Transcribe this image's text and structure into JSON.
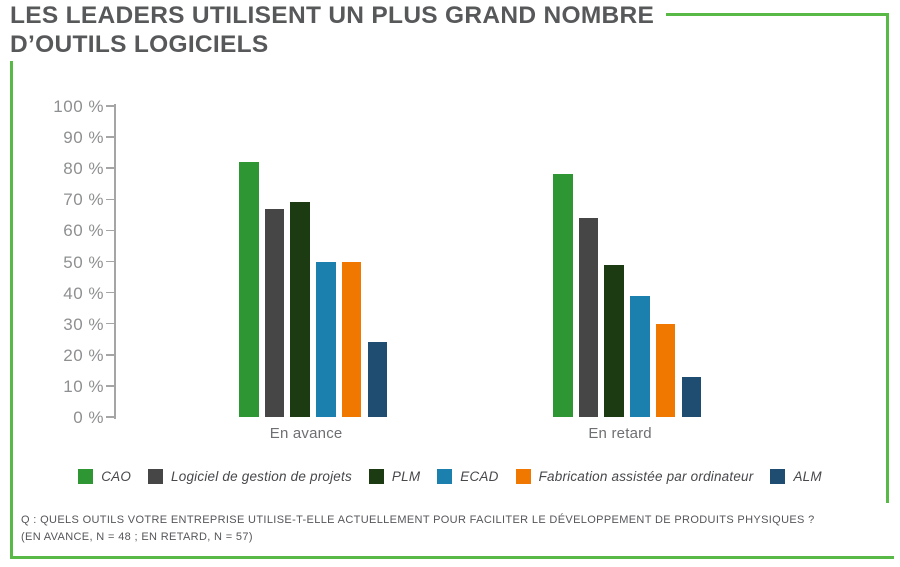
{
  "title": {
    "line1": "LES LEADERS UTILISENT UN PLUS GRAND NOMBRE",
    "line2": "D’OUTILS LOGICIELS"
  },
  "accent_color": "#58b947",
  "footnote": {
    "line1": "Q : QUELS OUTILS VOTRE ENTREPRISE UTILISE-T-ELLE ACTUELLEMENT POUR FACILITER LE DÉVELOPPEMENT DE PRODUITS PHYSIQUES ?",
    "line2": "(EN AVANCE, N = 48 ; EN RETARD, N = 57)"
  },
  "chart_data": {
    "type": "bar",
    "title": "",
    "categories": [
      "En avance",
      "En retard"
    ],
    "series": [
      {
        "name": "CAO",
        "color": "#2e9632",
        "values": [
          82,
          78
        ]
      },
      {
        "name": "Logiciel de gestion de projets",
        "color": "#464646",
        "values": [
          67,
          64
        ]
      },
      {
        "name": "PLM",
        "color": "#1c3b12",
        "values": [
          69,
          49
        ]
      },
      {
        "name": "ECAD",
        "color": "#1b80ad",
        "values": [
          50,
          39
        ]
      },
      {
        "name": "Fabrication assistée par ordinateur",
        "color": "#f07800",
        "values": [
          50,
          30
        ]
      },
      {
        "name": "ALM",
        "color": "#1f4d71",
        "values": [
          24,
          13
        ]
      }
    ],
    "xlabel": "",
    "ylabel": "",
    "ylim": [
      0,
      100
    ],
    "ytick_step": 10,
    "ytick_suffix": " %",
    "grid": false,
    "legend_position": "bottom"
  }
}
